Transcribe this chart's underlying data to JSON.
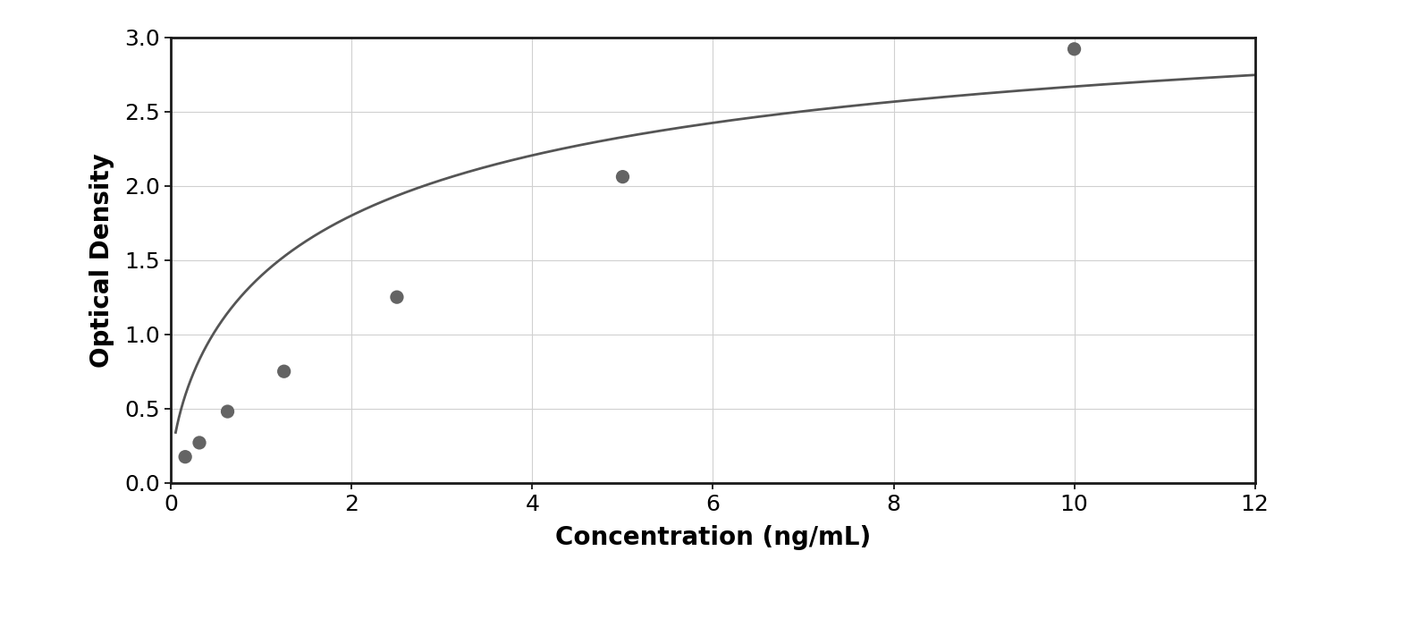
{
  "x_data": [
    0.156,
    0.313,
    0.625,
    1.25,
    2.5,
    5.0,
    10.0
  ],
  "y_data": [
    0.175,
    0.27,
    0.48,
    0.75,
    1.25,
    2.06,
    2.92
  ],
  "xlabel": "Concentration (ng/mL)",
  "ylabel": "Optical Density",
  "xlim": [
    0,
    12
  ],
  "ylim": [
    0,
    3.0
  ],
  "xticks": [
    0,
    2,
    4,
    6,
    8,
    10,
    12
  ],
  "yticks": [
    0,
    0.5,
    1.0,
    1.5,
    2.0,
    2.5,
    3.0
  ],
  "marker_color": "#646464",
  "line_color": "#555555",
  "grid_color": "#d0d0d0",
  "background_color": "#ffffff",
  "border_color": "#1a1a1a",
  "marker_size": 11,
  "line_width": 2.0,
  "xlabel_fontsize": 20,
  "ylabel_fontsize": 20,
  "tick_fontsize": 18,
  "xlabel_fontweight": "bold",
  "ylabel_fontweight": "bold"
}
